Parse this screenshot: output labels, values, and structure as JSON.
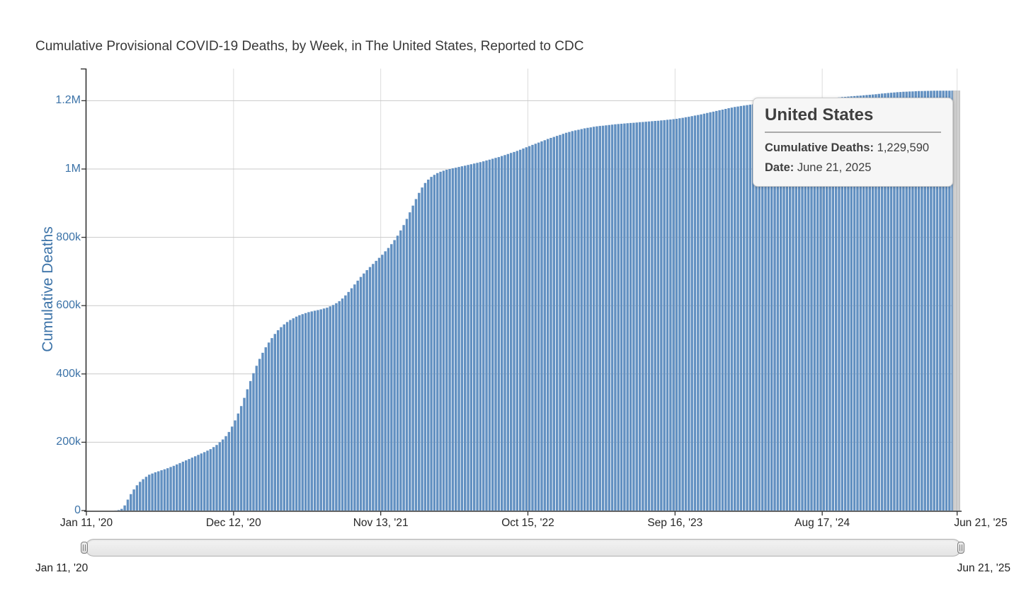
{
  "title": "Cumulative Provisional COVID-19 Deaths, by Week, in The United States, Reported to CDC",
  "tooltip": {
    "title": "United States",
    "rows": [
      {
        "label": "Cumulative Deaths:",
        "value": "1,229,590"
      },
      {
        "label": "Date:",
        "value": "June 21, 2025"
      }
    ]
  },
  "navigator": {
    "start_label": "Jan 11, '20",
    "end_label": "Jun 21, '25"
  },
  "colors": {
    "bar": "#6290c1",
    "axis": "#333333",
    "grid": "#c9c9c9",
    "vgrid": "#dcdcdc",
    "tick_text_blue": "#3c73a8",
    "hover_band": "#c6c6c6",
    "hover_band_stripe": "#dedede"
  },
  "chart_data": {
    "type": "bar",
    "title": "Cumulative Provisional COVID-19 Deaths, by Week, in The United States, Reported to CDC",
    "xlabel": "",
    "ylabel": "Cumulative Deaths",
    "x_unit": "week",
    "x_start": "Jan 11, '20",
    "x_end": "Jun 21, '25",
    "n_points": 285,
    "ylim": [
      0,
      1260000
    ],
    "grid": true,
    "yticks": [
      {
        "value": 0,
        "label": "0"
      },
      {
        "value": 200000,
        "label": "200k"
      },
      {
        "value": 400000,
        "label": "400k"
      },
      {
        "value": 600000,
        "label": "600k"
      },
      {
        "value": 800000,
        "label": "800k"
      },
      {
        "value": 1000000,
        "label": "1M"
      },
      {
        "value": 1200000,
        "label": "1.2M"
      }
    ],
    "xticks": [
      {
        "week": 0,
        "label": "Jan 11, '20"
      },
      {
        "week": 48,
        "label": "Dec 12, '20"
      },
      {
        "week": 96,
        "label": "Nov 13, '21"
      },
      {
        "week": 144,
        "label": "Oct 15, '22"
      },
      {
        "week": 192,
        "label": "Sep 16, '23"
      },
      {
        "week": 240,
        "label": "Aug 17, '24"
      },
      {
        "week": 284,
        "label": "Jun 21, '25"
      }
    ],
    "hovered_point": {
      "name": "United States",
      "date": "June 21, 2025",
      "cumulative_deaths": 1229590
    },
    "series_anchors_format": "[week_index_from_2020-01-11, cumulative_deaths] - weekly bars linearly interpolated between anchors",
    "series_anchors": [
      [
        0,
        0
      ],
      [
        7,
        40
      ],
      [
        9,
        300
      ],
      [
        10,
        1500
      ],
      [
        11,
        5000
      ],
      [
        12,
        15000
      ],
      [
        13,
        32000
      ],
      [
        14,
        48000
      ],
      [
        15,
        62000
      ],
      [
        16,
        74000
      ],
      [
        17,
        84000
      ],
      [
        18,
        92000
      ],
      [
        19,
        99000
      ],
      [
        20,
        105000
      ],
      [
        22,
        112000
      ],
      [
        24,
        118000
      ],
      [
        26,
        124000
      ],
      [
        28,
        131000
      ],
      [
        30,
        139000
      ],
      [
        32,
        147000
      ],
      [
        34,
        155000
      ],
      [
        36,
        163000
      ],
      [
        38,
        171000
      ],
      [
        40,
        180000
      ],
      [
        42,
        192000
      ],
      [
        44,
        208000
      ],
      [
        45,
        218000
      ],
      [
        46,
        230000
      ],
      [
        47,
        246000
      ],
      [
        48,
        264000
      ],
      [
        49,
        284000
      ],
      [
        50,
        306000
      ],
      [
        51,
        330000
      ],
      [
        52,
        355000
      ],
      [
        53,
        379000
      ],
      [
        54,
        402000
      ],
      [
        55,
        424000
      ],
      [
        56,
        444000
      ],
      [
        57,
        462000
      ],
      [
        58,
        478000
      ],
      [
        59,
        492000
      ],
      [
        60,
        505000
      ],
      [
        61,
        517000
      ],
      [
        62,
        528000
      ],
      [
        63,
        537000
      ],
      [
        64,
        545000
      ],
      [
        65,
        552000
      ],
      [
        66,
        558000
      ],
      [
        67,
        563000
      ],
      [
        68,
        568000
      ],
      [
        69,
        572000
      ],
      [
        70,
        575000
      ],
      [
        71,
        578000
      ],
      [
        72,
        581000
      ],
      [
        74,
        585000
      ],
      [
        76,
        589000
      ],
      [
        78,
        594000
      ],
      [
        79,
        598000
      ],
      [
        80,
        602000
      ],
      [
        81,
        607000
      ],
      [
        82,
        613000
      ],
      [
        83,
        621000
      ],
      [
        84,
        630000
      ],
      [
        85,
        640000
      ],
      [
        86,
        651000
      ],
      [
        87,
        662000
      ],
      [
        88,
        673000
      ],
      [
        89,
        684000
      ],
      [
        90,
        694000
      ],
      [
        91,
        704000
      ],
      [
        92,
        713000
      ],
      [
        93,
        722000
      ],
      [
        94,
        731000
      ],
      [
        95,
        740000
      ],
      [
        96,
        749000
      ],
      [
        97,
        759000
      ],
      [
        98,
        769000
      ],
      [
        99,
        780000
      ],
      [
        100,
        792000
      ],
      [
        101,
        805000
      ],
      [
        102,
        820000
      ],
      [
        103,
        836000
      ],
      [
        104,
        854000
      ],
      [
        105,
        873000
      ],
      [
        106,
        893000
      ],
      [
        107,
        912000
      ],
      [
        108,
        930000
      ],
      [
        109,
        946000
      ],
      [
        110,
        959000
      ],
      [
        111,
        969000
      ],
      [
        112,
        977000
      ],
      [
        113,
        983000
      ],
      [
        114,
        988000
      ],
      [
        115,
        992000
      ],
      [
        116,
        995000
      ],
      [
        117,
        998000
      ],
      [
        118,
        1000000
      ],
      [
        120,
        1004000
      ],
      [
        122,
        1008000
      ],
      [
        124,
        1012000
      ],
      [
        126,
        1016000
      ],
      [
        128,
        1020000
      ],
      [
        130,
        1025000
      ],
      [
        132,
        1030000
      ],
      [
        134,
        1035000
      ],
      [
        136,
        1041000
      ],
      [
        138,
        1047000
      ],
      [
        140,
        1053000
      ],
      [
        142,
        1060000
      ],
      [
        144,
        1067000
      ],
      [
        146,
        1074000
      ],
      [
        148,
        1081000
      ],
      [
        150,
        1088000
      ],
      [
        152,
        1094000
      ],
      [
        154,
        1100000
      ],
      [
        156,
        1106000
      ],
      [
        158,
        1111000
      ],
      [
        160,
        1115000
      ],
      [
        162,
        1119000
      ],
      [
        164,
        1122000
      ],
      [
        166,
        1125000
      ],
      [
        168,
        1127000
      ],
      [
        170,
        1129000
      ],
      [
        172,
        1131000
      ],
      [
        174,
        1132500
      ],
      [
        176,
        1134000
      ],
      [
        178,
        1135500
      ],
      [
        180,
        1137000
      ],
      [
        182,
        1138500
      ],
      [
        184,
        1140000
      ],
      [
        186,
        1141500
      ],
      [
        188,
        1143000
      ],
      [
        190,
        1145000
      ],
      [
        192,
        1147000
      ],
      [
        194,
        1150000
      ],
      [
        196,
        1153000
      ],
      [
        198,
        1156500
      ],
      [
        200,
        1160000
      ],
      [
        202,
        1164000
      ],
      [
        204,
        1168000
      ],
      [
        206,
        1172000
      ],
      [
        208,
        1176000
      ],
      [
        210,
        1180000
      ],
      [
        212,
        1183000
      ],
      [
        214,
        1186000
      ],
      [
        216,
        1188500
      ],
      [
        218,
        1190500
      ],
      [
        220,
        1192500
      ],
      [
        222,
        1194000
      ],
      [
        224,
        1195500
      ],
      [
        226,
        1197000
      ],
      [
        228,
        1198200
      ],
      [
        230,
        1199300
      ],
      [
        232,
        1200400
      ],
      [
        234,
        1201500
      ],
      [
        236,
        1202800
      ],
      [
        238,
        1204200
      ],
      [
        240,
        1205800
      ],
      [
        242,
        1207400
      ],
      [
        244,
        1209000
      ],
      [
        246,
        1210500
      ],
      [
        248,
        1212000
      ],
      [
        250,
        1213500
      ],
      [
        252,
        1215000
      ],
      [
        254,
        1216500
      ],
      [
        256,
        1218200
      ],
      [
        258,
        1220000
      ],
      [
        260,
        1221800
      ],
      [
        262,
        1223400
      ],
      [
        264,
        1224800
      ],
      [
        266,
        1226000
      ],
      [
        268,
        1227000
      ],
      [
        270,
        1227800
      ],
      [
        272,
        1228400
      ],
      [
        274,
        1228800
      ],
      [
        276,
        1229100
      ],
      [
        278,
        1229300
      ],
      [
        280,
        1229430
      ],
      [
        282,
        1229520
      ],
      [
        284,
        1229590
      ]
    ]
  }
}
